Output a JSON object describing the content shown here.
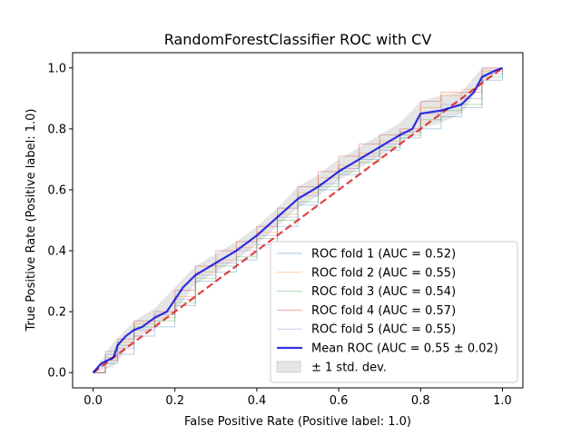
{
  "chart_data": {
    "type": "line",
    "title": "RandomForestClassifier ROC with CV",
    "xlabel": "False Positive Rate (Positive label: 1.0)",
    "ylabel": "True Positive Rate (Positive label: 1.0)",
    "xlim": [
      -0.05,
      1.05
    ],
    "ylim": [
      -0.05,
      1.05
    ],
    "xticks": [
      "0.0",
      "0.2",
      "0.4",
      "0.6",
      "0.8",
      "1.0"
    ],
    "yticks": [
      "0.0",
      "0.2",
      "0.4",
      "0.6",
      "0.8",
      "1.0"
    ],
    "grid": false,
    "legend_position": "lower-right",
    "series": [
      {
        "name": "ROC fold 1 (AUC = 0.52)",
        "color": "#1f77b4",
        "x": [
          0.0,
          0.03,
          0.06,
          0.1,
          0.15,
          0.2,
          0.25,
          0.3,
          0.35,
          0.4,
          0.45,
          0.5,
          0.55,
          0.6,
          0.65,
          0.7,
          0.75,
          0.8,
          0.85,
          0.9,
          0.95,
          1.0
        ],
        "y": [
          0.0,
          0.03,
          0.06,
          0.12,
          0.15,
          0.22,
          0.3,
          0.33,
          0.37,
          0.42,
          0.48,
          0.55,
          0.6,
          0.65,
          0.7,
          0.73,
          0.77,
          0.8,
          0.84,
          0.87,
          0.96,
          1.0
        ]
      },
      {
        "name": "ROC fold 2 (AUC = 0.55)",
        "color": "#ff7f0e",
        "x": [
          0.0,
          0.03,
          0.06,
          0.1,
          0.15,
          0.2,
          0.25,
          0.3,
          0.35,
          0.4,
          0.45,
          0.5,
          0.55,
          0.6,
          0.65,
          0.7,
          0.75,
          0.8,
          0.85,
          0.9,
          0.95,
          1.0
        ],
        "y": [
          0.0,
          0.05,
          0.1,
          0.16,
          0.18,
          0.25,
          0.33,
          0.37,
          0.41,
          0.46,
          0.52,
          0.59,
          0.64,
          0.68,
          0.72,
          0.76,
          0.79,
          0.87,
          0.91,
          0.93,
          0.99,
          1.0
        ]
      },
      {
        "name": "ROC fold 3 (AUC = 0.54)",
        "color": "#2ca02c",
        "x": [
          0.0,
          0.03,
          0.06,
          0.1,
          0.15,
          0.2,
          0.25,
          0.3,
          0.35,
          0.4,
          0.45,
          0.5,
          0.55,
          0.6,
          0.65,
          0.7,
          0.75,
          0.8,
          0.85,
          0.9,
          0.95,
          1.0
        ],
        "y": [
          0.0,
          0.07,
          0.09,
          0.15,
          0.17,
          0.23,
          0.31,
          0.35,
          0.38,
          0.44,
          0.5,
          0.56,
          0.61,
          0.66,
          0.69,
          0.74,
          0.78,
          0.83,
          0.86,
          0.88,
          0.97,
          1.0
        ]
      },
      {
        "name": "ROC fold 4 (AUC = 0.57)",
        "color": "#d62728",
        "x": [
          0.0,
          0.03,
          0.06,
          0.1,
          0.15,
          0.2,
          0.25,
          0.3,
          0.35,
          0.4,
          0.45,
          0.5,
          0.55,
          0.6,
          0.65,
          0.7,
          0.75,
          0.8,
          0.85,
          0.9,
          0.95,
          1.0
        ],
        "y": [
          0.0,
          0.04,
          0.11,
          0.17,
          0.2,
          0.27,
          0.35,
          0.4,
          0.43,
          0.48,
          0.54,
          0.61,
          0.66,
          0.71,
          0.75,
          0.78,
          0.8,
          0.89,
          0.92,
          0.92,
          1.0,
          1.0
        ]
      },
      {
        "name": "ROC fold 5 (AUC = 0.55)",
        "color": "#9467bd",
        "x": [
          0.0,
          0.03,
          0.06,
          0.1,
          0.15,
          0.2,
          0.25,
          0.3,
          0.35,
          0.4,
          0.45,
          0.5,
          0.55,
          0.6,
          0.65,
          0.7,
          0.75,
          0.8,
          0.85,
          0.9,
          0.95,
          1.0
        ],
        "y": [
          0.0,
          0.06,
          0.08,
          0.14,
          0.19,
          0.24,
          0.32,
          0.36,
          0.4,
          0.45,
          0.51,
          0.58,
          0.62,
          0.67,
          0.71,
          0.75,
          0.79,
          0.85,
          0.88,
          0.9,
          0.98,
          1.0
        ]
      },
      {
        "name": "Mean ROC (AUC = 0.55 ± 0.02)",
        "color": "#0000dd",
        "x": [
          0.0,
          0.02,
          0.05,
          0.06,
          0.08,
          0.1,
          0.12,
          0.15,
          0.18,
          0.2,
          0.22,
          0.25,
          0.3,
          0.35,
          0.4,
          0.45,
          0.5,
          0.55,
          0.6,
          0.65,
          0.7,
          0.75,
          0.78,
          0.8,
          0.85,
          0.9,
          0.93,
          0.95,
          0.98,
          1.0
        ],
        "y": [
          0.0,
          0.03,
          0.05,
          0.09,
          0.12,
          0.14,
          0.15,
          0.18,
          0.2,
          0.24,
          0.28,
          0.32,
          0.36,
          0.4,
          0.45,
          0.51,
          0.57,
          0.61,
          0.66,
          0.7,
          0.74,
          0.78,
          0.8,
          0.85,
          0.86,
          0.88,
          0.92,
          0.97,
          0.99,
          1.0
        ]
      }
    ],
    "chance_line": {
      "x": [
        0,
        1
      ],
      "y": [
        0,
        1
      ],
      "color": "#e02020"
    },
    "std_band": {
      "name": "± 1 std. dev.",
      "x": [
        0.0,
        0.05,
        0.1,
        0.15,
        0.2,
        0.25,
        0.3,
        0.35,
        0.4,
        0.45,
        0.5,
        0.55,
        0.6,
        0.65,
        0.7,
        0.75,
        0.8,
        0.85,
        0.9,
        0.95,
        1.0
      ],
      "upper": [
        0.0,
        0.1,
        0.17,
        0.21,
        0.28,
        0.35,
        0.39,
        0.43,
        0.48,
        0.54,
        0.61,
        0.65,
        0.7,
        0.74,
        0.78,
        0.82,
        0.89,
        0.91,
        0.92,
        1.0,
        1.0
      ],
      "lower": [
        0.0,
        0.02,
        0.11,
        0.15,
        0.2,
        0.29,
        0.33,
        0.37,
        0.42,
        0.48,
        0.54,
        0.58,
        0.63,
        0.67,
        0.71,
        0.75,
        0.8,
        0.82,
        0.85,
        0.95,
        1.0
      ]
    }
  }
}
